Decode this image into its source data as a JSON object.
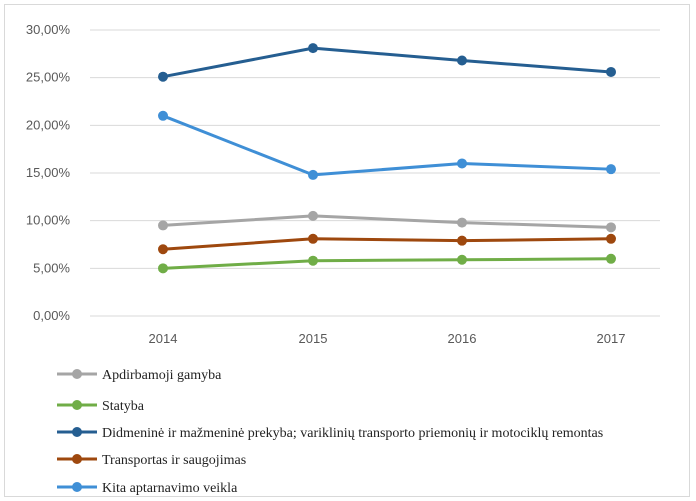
{
  "chart_data": {
    "type": "line",
    "title": "",
    "xlabel": "",
    "ylabel": "",
    "x": [
      "2014",
      "2015",
      "2016",
      "2017"
    ],
    "ylim": [
      0,
      30
    ],
    "yticks": [
      0,
      5,
      10,
      15,
      20,
      25,
      30
    ],
    "ytick_labels": [
      "0,00%",
      "5,00%",
      "10,00%",
      "15,00%",
      "20,00%",
      "25,00%",
      "30,00%"
    ],
    "grid": "horizontal",
    "legend_position": "bottom",
    "series": [
      {
        "name": "Apdirbamoji gamyba",
        "color": "#a5a5a5",
        "values": [
          9.5,
          10.5,
          9.8,
          9.3
        ]
      },
      {
        "name": "Statyba",
        "color": "#70ad47",
        "values": [
          5.0,
          5.8,
          5.9,
          6.0
        ]
      },
      {
        "name": "Didmeninė ir mažmeninė prekyba; variklinių transporto priemonių ir motociklų remontas",
        "color": "#255e91",
        "values": [
          25.1,
          28.1,
          26.8,
          25.6
        ]
      },
      {
        "name": "Transportas ir saugojimas",
        "color": "#9e480e",
        "values": [
          7.0,
          8.1,
          7.9,
          8.1
        ]
      },
      {
        "name": "Kita aptarnavimo veikla",
        "color": "#3f8fd6",
        "values": [
          21.0,
          14.8,
          16.0,
          15.4
        ]
      }
    ]
  }
}
